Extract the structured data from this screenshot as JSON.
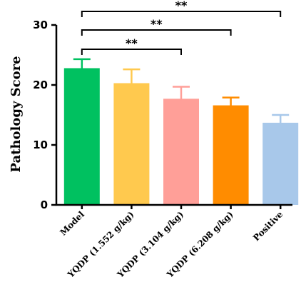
{
  "chart_data": {
    "type": "bar",
    "categories": [
      "Model",
      "YQDP (1.552 g/kg)",
      "YQDP (3.104 g/kg)",
      "YQDP (6.208 g/kg)",
      "Positive"
    ],
    "values": [
      22.8,
      20.3,
      17.7,
      16.6,
      13.7
    ],
    "errors": [
      1.5,
      2.3,
      2.0,
      1.3,
      1.3
    ],
    "colors": [
      "#00c160",
      "#ffc94e",
      "#ff9f98",
      "#ff8c00",
      "#a8c8ea"
    ],
    "error_bar_colors": [
      "#00c160",
      "#ffc94e",
      "#ff9f98",
      "#ff8c00",
      "#a8c8ea"
    ],
    "ylabel": "Pathology Score",
    "xlabel": "",
    "ylim": [
      0,
      30
    ],
    "yticks": [
      "0",
      "10",
      "20",
      "30"
    ],
    "grid": false,
    "significance": [
      {
        "from": 0,
        "to": 2,
        "label": "**"
      },
      {
        "from": 0,
        "to": 3,
        "label": "**"
      },
      {
        "from": 0,
        "to": 4,
        "label": "**"
      }
    ]
  }
}
